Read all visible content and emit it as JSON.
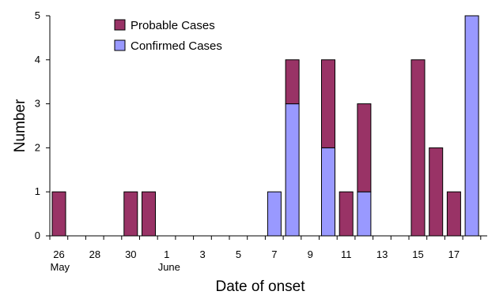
{
  "chart_data": {
    "type": "bar",
    "stacked": true,
    "xlabel": "Date of onset",
    "ylabel": "Number",
    "ylim": [
      0,
      5
    ],
    "y_ticks": [
      0,
      1,
      2,
      3,
      4,
      5
    ],
    "grid": false,
    "legend_placement": "top-left",
    "x_tick_labels": [
      {
        "label": "26",
        "sublabel": "May",
        "date": "May 26"
      },
      {
        "label": "28",
        "sublabel": "",
        "date": "May 28"
      },
      {
        "label": "30",
        "sublabel": "",
        "date": "May 30"
      },
      {
        "label": "1",
        "sublabel": "June",
        "date": "June 1"
      },
      {
        "label": "3",
        "sublabel": "",
        "date": "June 3"
      },
      {
        "label": "5",
        "sublabel": "",
        "date": "June 5"
      },
      {
        "label": "7",
        "sublabel": "",
        "date": "June 7"
      },
      {
        "label": "9",
        "sublabel": "",
        "date": "June 9"
      },
      {
        "label": "11",
        "sublabel": "",
        "date": "June 11"
      },
      {
        "label": "13",
        "sublabel": "",
        "date": "June 13"
      },
      {
        "label": "15",
        "sublabel": "",
        "date": "June 15"
      },
      {
        "label": "17",
        "sublabel": "",
        "date": "June 17"
      }
    ],
    "x": [
      "May 26",
      "May 30",
      "May 31",
      "June 7",
      "June 8",
      "June 10",
      "June 11",
      "June 12",
      "June 15",
      "June 16",
      "June 17",
      "June 18"
    ],
    "series": [
      {
        "name": "Confirmed Cases",
        "color": "#9999ff",
        "values": [
          0,
          0,
          0,
          1,
          3,
          2,
          0,
          1,
          0,
          0,
          0,
          5
        ]
      },
      {
        "name": "Probable Cases",
        "color": "#993366",
        "values": [
          1,
          1,
          1,
          0,
          1,
          2,
          1,
          2,
          4,
          2,
          1,
          0
        ]
      }
    ],
    "legend_order": [
      "Probable Cases",
      "Confirmed Cases"
    ]
  }
}
